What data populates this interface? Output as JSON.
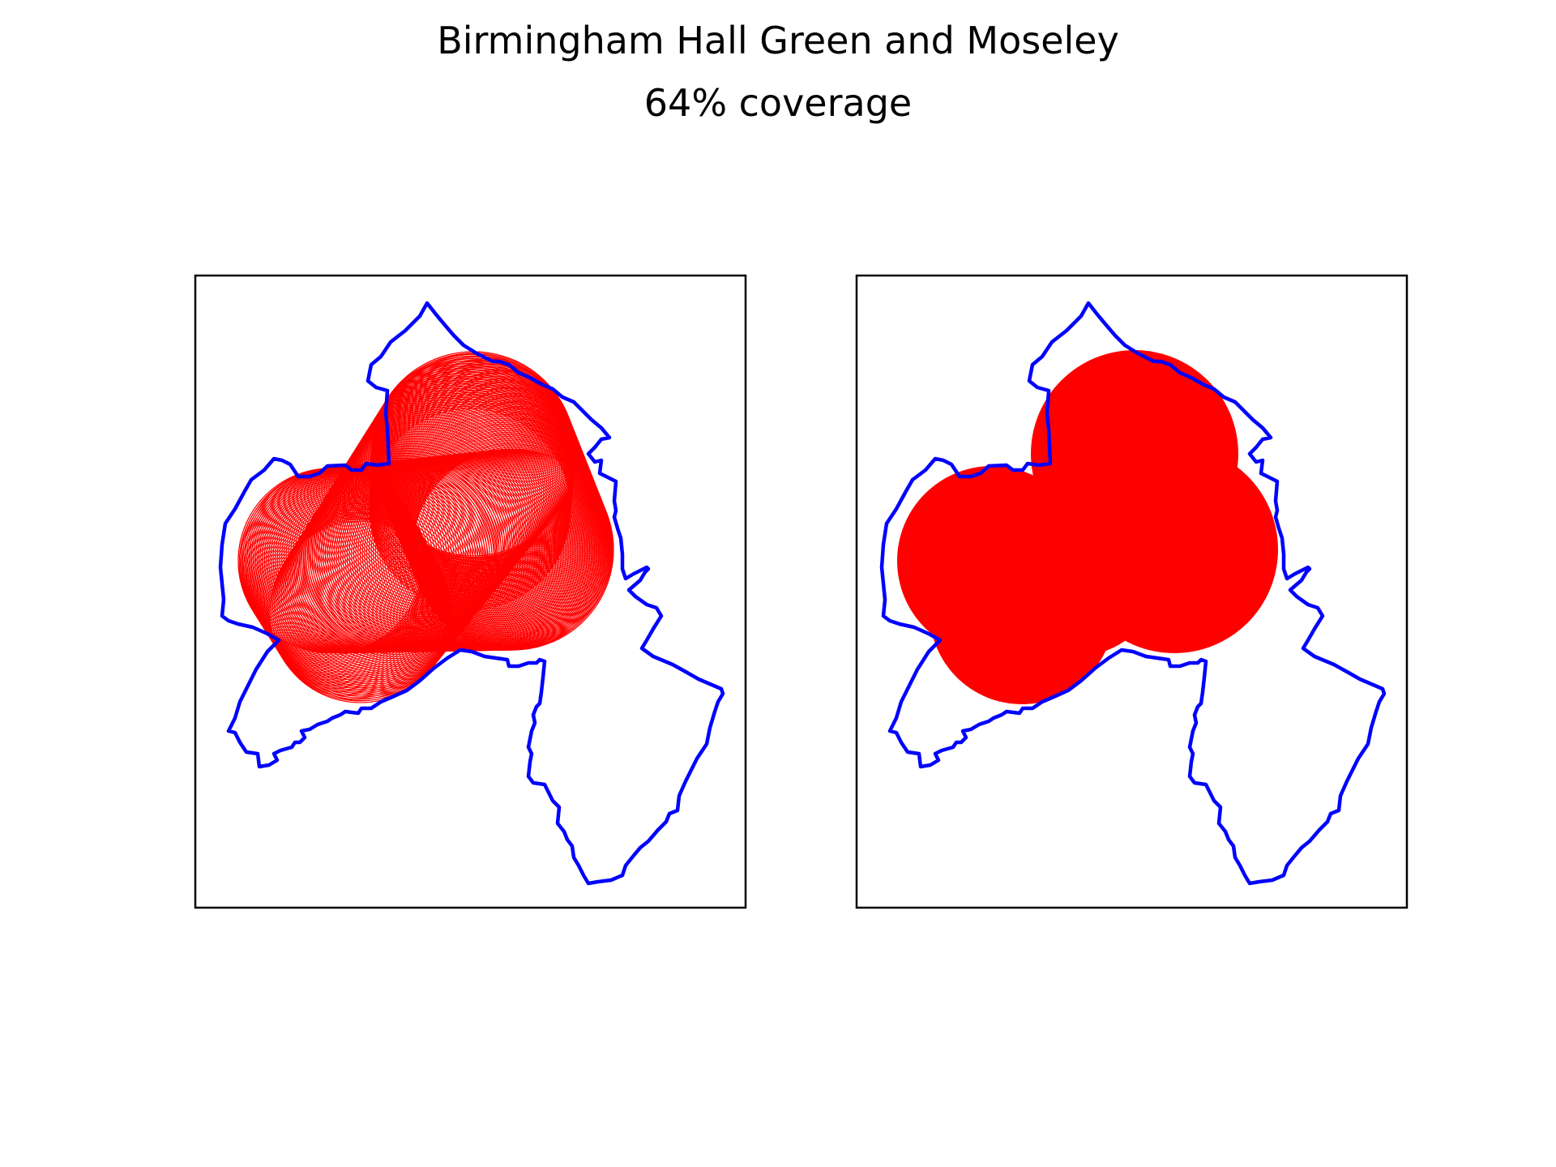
{
  "figure": {
    "title": "Birmingham Hall Green and Moseley",
    "subtitle": "64% coverage"
  },
  "colors": {
    "boundary": "#0000ff",
    "coverage": "#ff0000",
    "frame": "#000000",
    "background": "#ffffff"
  },
  "panels": [
    {
      "style": "outlines"
    },
    {
      "style": "filled"
    }
  ],
  "coverage_percent": 64
}
